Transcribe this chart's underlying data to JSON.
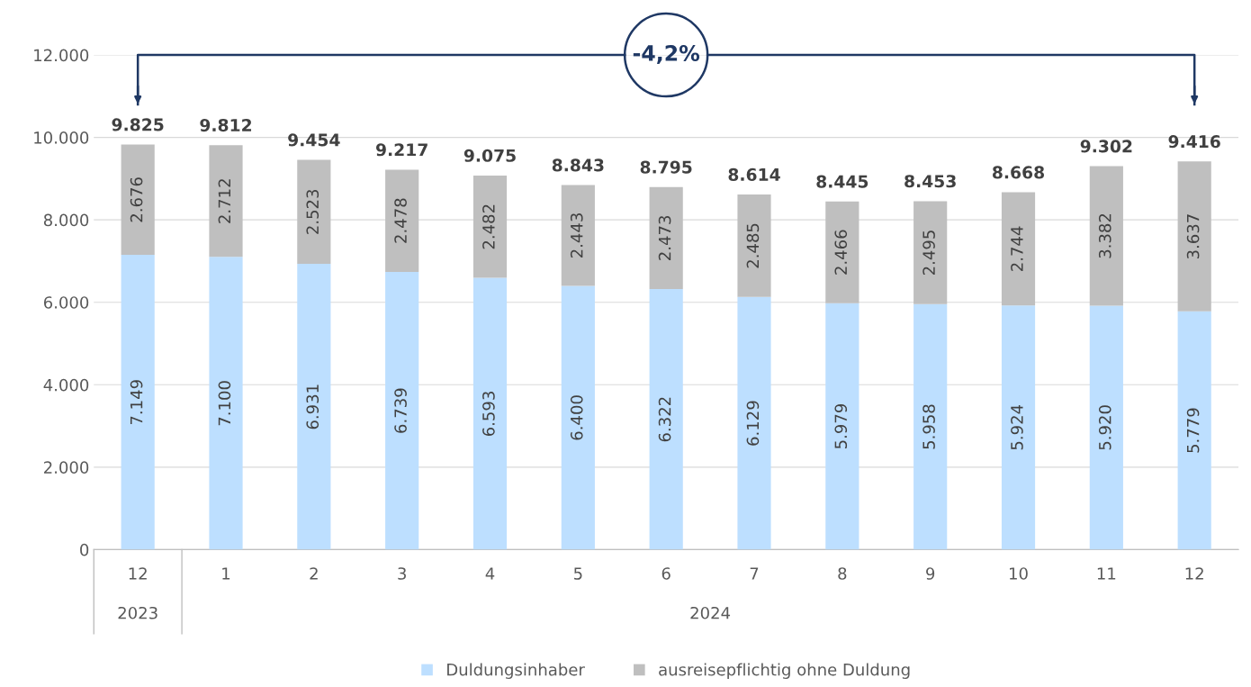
{
  "chart_data": {
    "type": "bar",
    "stacked": true,
    "categories": [
      "12",
      "1",
      "2",
      "3",
      "4",
      "5",
      "6",
      "7",
      "8",
      "9",
      "10",
      "11",
      "12"
    ],
    "series": [
      {
        "name": "Duldungsinhaber",
        "color": "#bddfff",
        "values": [
          7149,
          7100,
          6931,
          6739,
          6593,
          6400,
          6322,
          6129,
          5979,
          5958,
          5924,
          5920,
          5779
        ],
        "value_labels": [
          "7.149",
          "7.100",
          "6.931",
          "6.739",
          "6.593",
          "6.400",
          "6.322",
          "6.129",
          "5.979",
          "5.958",
          "5.924",
          "5.920",
          "5.779"
        ]
      },
      {
        "name": "ausreisepflichtig ohne Duldung",
        "color": "#bfbfbf",
        "values": [
          2676,
          2712,
          2523,
          2478,
          2482,
          2443,
          2473,
          2485,
          2466,
          2495,
          2744,
          3382,
          3637
        ],
        "value_labels": [
          "2.676",
          "2.712",
          "2.523",
          "2.478",
          "2.482",
          "2.443",
          "2.473",
          "2.485",
          "2.466",
          "2.495",
          "2.744",
          "3.382",
          "3.637"
        ]
      }
    ],
    "totals": [
      "9.825",
      "9.812",
      "9.454",
      "9.217",
      "9.075",
      "8.843",
      "8.795",
      "8.614",
      "8.445",
      "8.453",
      "8.668",
      "9.302",
      "9.416"
    ],
    "ylim": [
      0,
      12000
    ],
    "yticks": [
      0,
      {
        "value": 2000,
        "label": "2.000"
      },
      {
        "value": 4000,
        "label": "4.000"
      },
      {
        "value": 6000,
        "label": "6.000"
      },
      {
        "value": 8000,
        "label": "8.000"
      },
      {
        "value": 10000,
        "label": "10.000"
      },
      {
        "value": 12000,
        "label": "12.000"
      }
    ],
    "grid": "y",
    "legend": "bottom",
    "annotations": [
      "-4,2%",
      "2023",
      "2024"
    ]
  }
}
